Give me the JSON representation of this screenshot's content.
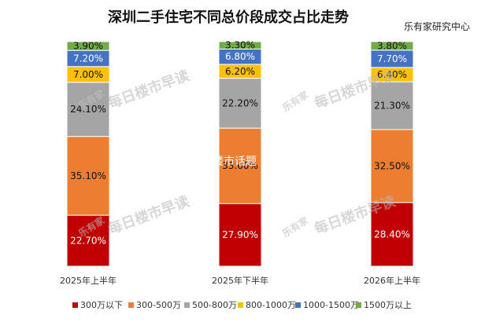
{
  "chart_data": {
    "type": "bar",
    "stacked": true,
    "title": "深圳二手住宅不同总价段成交占比走势",
    "source": "乐有家研究中心",
    "categories": [
      "2025年上半年",
      "2025年下半年",
      "2026年上半年"
    ],
    "series": [
      {
        "name": "300万以下",
        "color": "#c00000",
        "values": [
          22.7,
          27.9,
          28.4
        ],
        "labels": [
          "22.70%",
          "27.90%",
          "28.40%"
        ]
      },
      {
        "name": "300-500万",
        "color": "#ed7d31",
        "values": [
          35.1,
          33.6,
          32.5
        ],
        "labels": [
          "35.10%",
          "33.60%",
          "32.50%"
        ]
      },
      {
        "name": "500-800万",
        "color": "#a5a5a5",
        "values": [
          24.1,
          22.2,
          21.3
        ],
        "labels": [
          "24.10%",
          "22.20%",
          "21.30%"
        ]
      },
      {
        "name": "800-1000万",
        "color": "#ffc000",
        "values": [
          7.0,
          6.2,
          6.4
        ],
        "labels": [
          "7.00%",
          "6.20%",
          "6.40%"
        ]
      },
      {
        "name": "1000-1500万",
        "color": "#4472c4",
        "values": [
          7.2,
          6.8,
          7.7
        ],
        "labels": [
          "7.20%",
          "6.80%",
          "7.70%"
        ]
      },
      {
        "name": "1500万以上",
        "color": "#70ad47",
        "values": [
          3.9,
          3.3,
          3.8
        ],
        "labels": [
          "3.90%",
          "3.30%",
          "3.80%"
        ]
      }
    ],
    "ylim": [
      0,
      100
    ],
    "legend": "bottom",
    "grid": false
  },
  "watermarks": {
    "brand": "每日楼市早读",
    "logo": "乐有家",
    "center": "@楼市话题"
  }
}
